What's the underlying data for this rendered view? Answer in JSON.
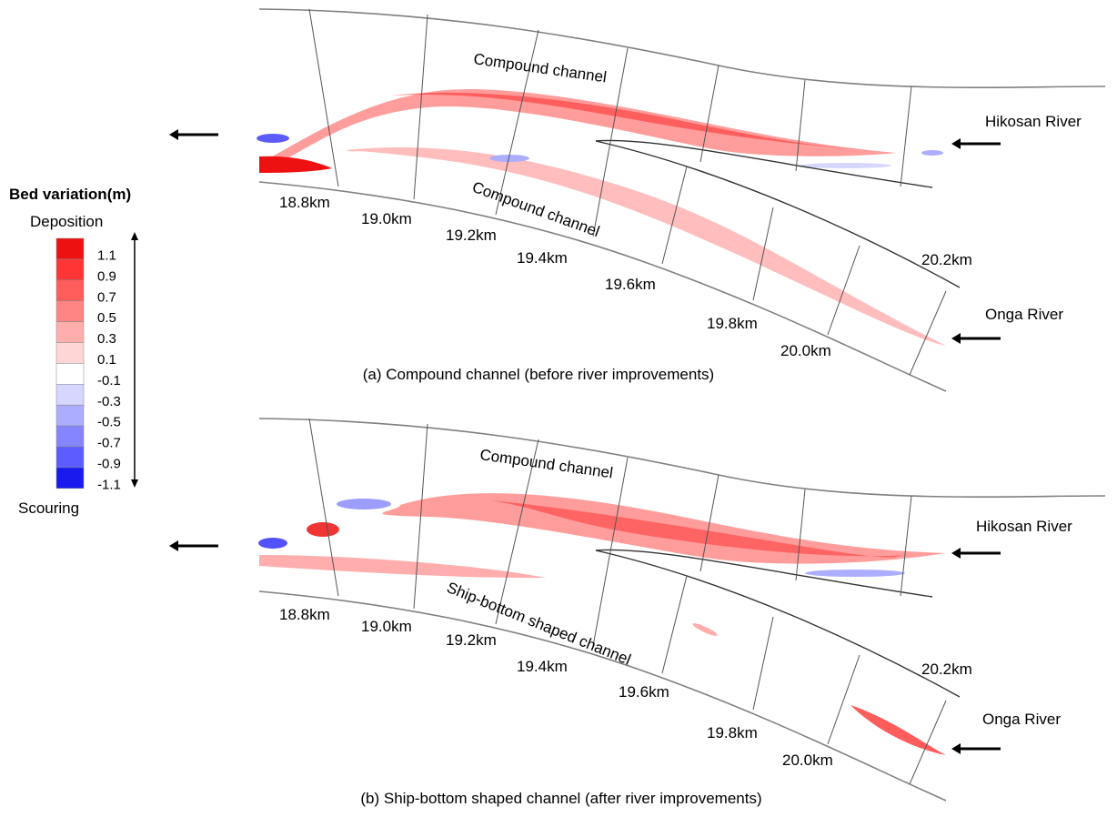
{
  "legend": {
    "title": "Bed variation(m)",
    "top_label": "Deposition",
    "bottom_label": "Scouring",
    "levels": [
      1.1,
      0.9,
      0.7,
      0.5,
      0.3,
      0.1,
      -0.1,
      -0.3,
      -0.5,
      -0.7,
      -0.9,
      -1.1
    ],
    "colors": [
      "#ee1111",
      "#ff3434",
      "#ff5c5c",
      "#ff8585",
      "#ffadad",
      "#ffd6d6",
      "#ffffff",
      "#d6d6ff",
      "#adadff",
      "#8585ff",
      "#5c5cff",
      "#1a1aee"
    ]
  },
  "panels": [
    {
      "caption": "(a) Compound channel (before river improvements)",
      "channel_labels": [
        "Compound channel",
        "Compound channel"
      ],
      "km_labels": [
        "18.8km",
        "19.0km",
        "19.2km",
        "19.4km",
        "19.6km",
        "19.8km",
        "20.0km",
        "20.2km"
      ],
      "rivers": [
        "Hikosan River",
        "Onga River"
      ]
    },
    {
      "caption": "(b) Ship-bottom shaped channel (after river improvements)",
      "channel_labels": [
        "Compound channel",
        "Ship-bottom shaped channel"
      ],
      "km_labels": [
        "18.8km",
        "19.0km",
        "19.2km",
        "19.4km",
        "19.6km",
        "19.8km",
        "20.0km",
        "20.2km"
      ],
      "rivers": [
        "Hikosan River",
        "Onga River"
      ]
    }
  ]
}
